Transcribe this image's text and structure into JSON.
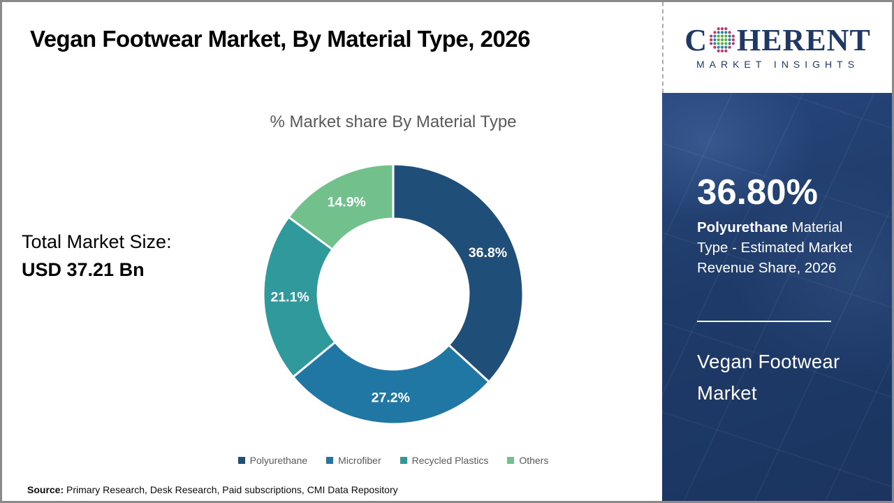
{
  "page": {
    "title": "Vegan Footwear Market, By Material Type, 2026",
    "source_label": "Source:",
    "source_text": " Primary Research, Desk Research, Paid subscriptions, CMI Data Repository"
  },
  "logo": {
    "brand_prefix": "C",
    "brand_suffix": "HERENT",
    "brand_sub": "MARKET INSIGHTS",
    "navy": "#1f3864",
    "globe_colors": {
      "inner": "#5bab46",
      "mid": "#2e849a",
      "outer": "#c0366c"
    }
  },
  "left_stats": {
    "label": "Total Market Size:",
    "value": "USD 37.21 Bn"
  },
  "chart_data": {
    "type": "pie",
    "donut": true,
    "title": "% Market share By Material Type",
    "start_angle_deg": 0,
    "direction": "clockwise",
    "inner_radius_ratio": 0.58,
    "label_format": "percent",
    "legend_position": "bottom",
    "series": [
      {
        "name": "Polyurethane",
        "value": 36.8,
        "color": "#1f4e79"
      },
      {
        "name": "Microfiber",
        "value": 27.2,
        "color": "#2077a4"
      },
      {
        "name": "Recycled Plastics",
        "value": 21.1,
        "color": "#30999b"
      },
      {
        "name": "Others",
        "value": 14.9,
        "color": "#72c08c"
      }
    ]
  },
  "panel": {
    "stat_value": "36.80%",
    "desc_bold": "Polyurethane",
    "desc_rest": " Material Type - Estimated Market Revenue Share, 2026",
    "market_name": "Vegan Footwear Market",
    "bg_color": "#1e3a68"
  }
}
